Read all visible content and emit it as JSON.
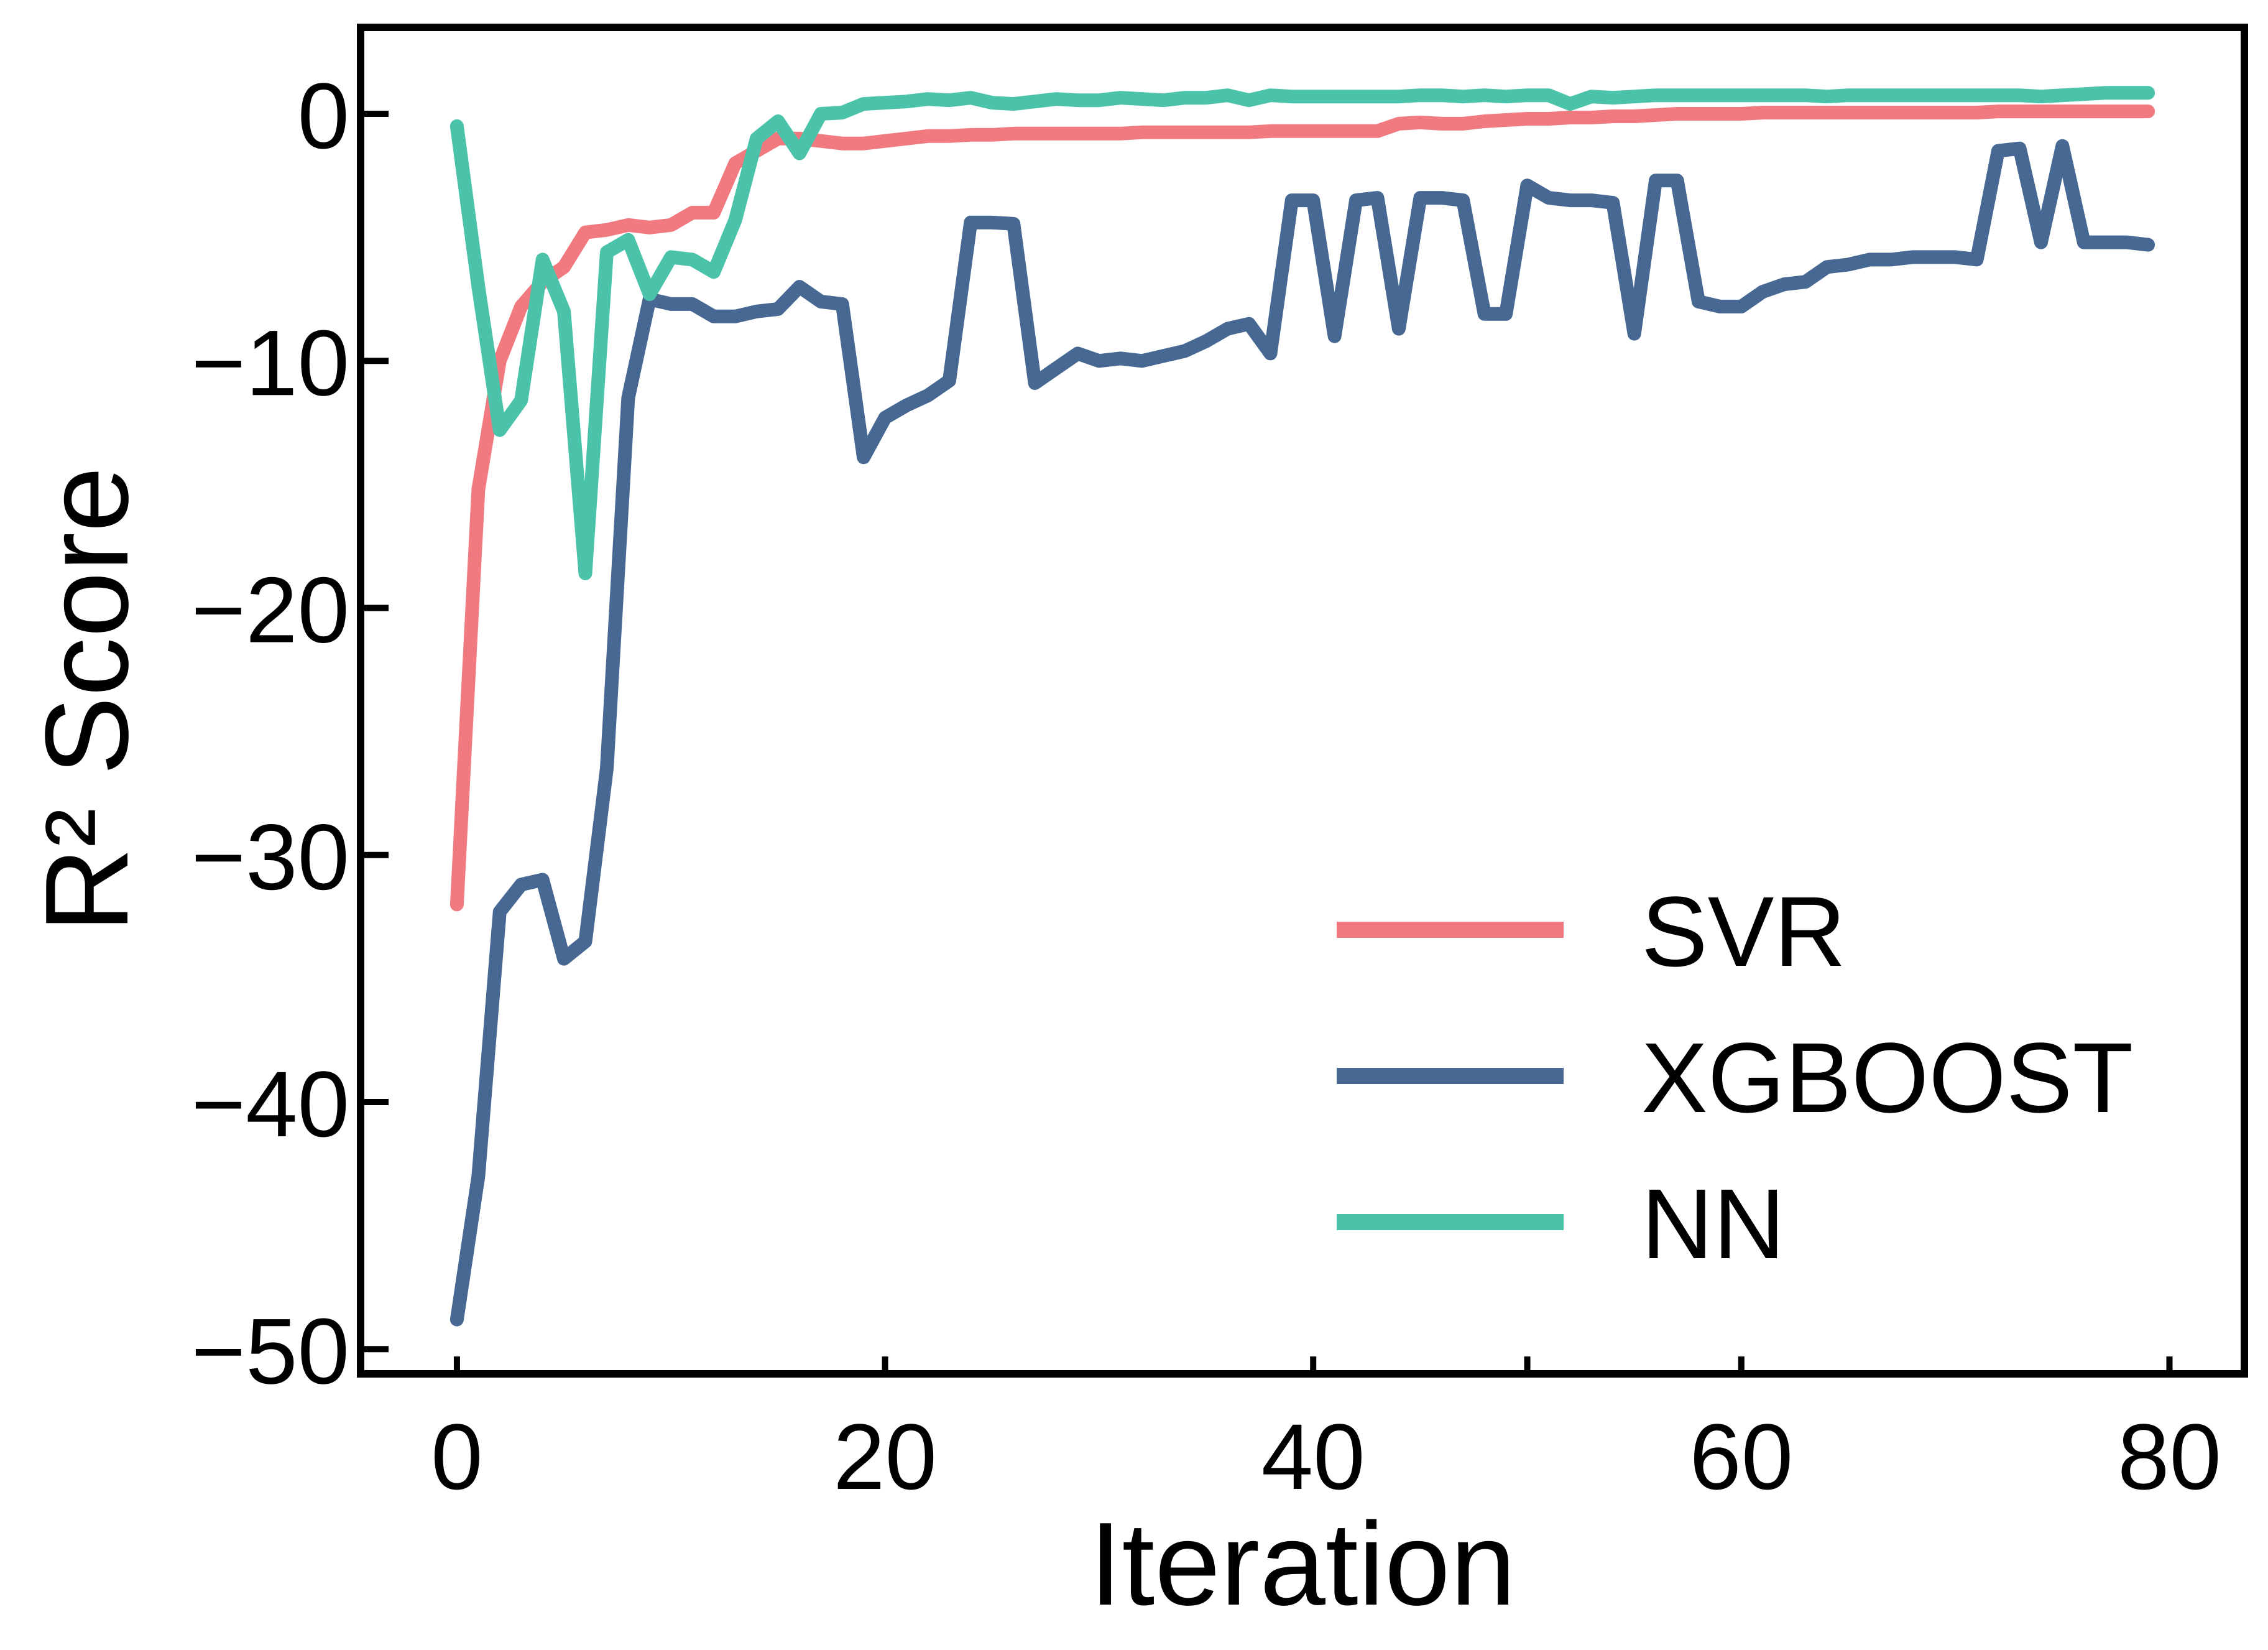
{
  "chart_data": {
    "type": "line",
    "xlabel": "Iteration",
    "ylabel": "R² Score",
    "xlim": [
      -4.5,
      83.5
    ],
    "ylim": [
      -51,
      3.5
    ],
    "x_ticks": [
      {
        "value": 0,
        "label": "0"
      },
      {
        "value": 20,
        "label": "20"
      },
      {
        "value": 40,
        "label": "40"
      },
      {
        "value": 60,
        "label": "60"
      },
      {
        "value": 80,
        "label": "80"
      }
    ],
    "x_minor_ticks": [
      50
    ],
    "y_ticks": [
      {
        "value": 0,
        "label": "0"
      },
      {
        "value": -10,
        "label": "−10"
      },
      {
        "value": -20,
        "label": "−20"
      },
      {
        "value": -30,
        "label": "−30"
      },
      {
        "value": -40,
        "label": "−40"
      },
      {
        "value": -50,
        "label": "−50"
      }
    ],
    "grid": false,
    "legend_position": "lower-right",
    "series": [
      {
        "name": "SVR",
        "color": "#F07A7F",
        "values": [
          -32.0,
          -15.2,
          -10.0,
          -7.8,
          -6.8,
          -6.2,
          -4.8,
          -4.7,
          -4.5,
          -4.6,
          -4.5,
          -4.0,
          -4.0,
          -2.0,
          -1.5,
          -1.0,
          -1.0,
          -1.1,
          -1.2,
          -1.2,
          -1.1,
          -1.0,
          -0.9,
          -0.9,
          -0.85,
          -0.85,
          -0.8,
          -0.8,
          -0.8,
          -0.8,
          -0.8,
          -0.8,
          -0.75,
          -0.75,
          -0.75,
          -0.75,
          -0.75,
          -0.75,
          -0.7,
          -0.7,
          -0.7,
          -0.7,
          -0.7,
          -0.7,
          -0.4,
          -0.35,
          -0.4,
          -0.4,
          -0.3,
          -0.25,
          -0.2,
          -0.2,
          -0.15,
          -0.15,
          -0.1,
          -0.1,
          -0.05,
          0.0,
          0.0,
          0.0,
          0.0,
          0.05,
          0.05,
          0.05,
          0.05,
          0.05,
          0.05,
          0.05,
          0.05,
          0.05,
          0.05,
          0.05,
          0.1,
          0.1,
          0.1,
          0.1,
          0.1,
          0.1,
          0.1,
          0.1
        ]
      },
      {
        "name": "XGBOOST",
        "color": "#466892",
        "values": [
          -48.8,
          -43.0,
          -32.3,
          -31.2,
          -31.0,
          -34.2,
          -33.5,
          -26.5,
          -11.5,
          -7.5,
          -7.7,
          -7.7,
          -8.2,
          -8.2,
          -8.0,
          -7.9,
          -7.0,
          -7.6,
          -7.7,
          -13.9,
          -12.3,
          -11.8,
          -11.4,
          -10.8,
          -4.4,
          -4.4,
          -4.45,
          -10.9,
          -10.3,
          -9.7,
          -10.0,
          -9.9,
          -10.0,
          -9.8,
          -9.6,
          -9.2,
          -8.7,
          -8.5,
          -9.7,
          -3.5,
          -3.5,
          -9.0,
          -3.5,
          -3.4,
          -8.7,
          -3.4,
          -3.4,
          -3.5,
          -8.1,
          -8.1,
          -2.9,
          -3.4,
          -3.5,
          -3.5,
          -3.6,
          -8.9,
          -2.7,
          -2.7,
          -7.6,
          -7.8,
          -7.8,
          -7.2,
          -6.9,
          -6.8,
          -6.2,
          -6.1,
          -5.9,
          -5.9,
          -5.8,
          -5.8,
          -5.8,
          -5.9,
          -1.5,
          -1.4,
          -5.2,
          -1.3,
          -5.2,
          -5.2,
          -5.2,
          -5.3
        ]
      },
      {
        "name": "NN",
        "color": "#4BC3AA",
        "values": [
          -0.5,
          -7.0,
          -12.8,
          -11.6,
          -5.9,
          -8.0,
          -18.6,
          -5.6,
          -5.1,
          -7.3,
          -5.8,
          -5.9,
          -6.4,
          -4.3,
          -1.0,
          -0.3,
          -1.6,
          0.0,
          0.05,
          0.4,
          0.45,
          0.5,
          0.6,
          0.55,
          0.65,
          0.45,
          0.4,
          0.5,
          0.6,
          0.55,
          0.55,
          0.65,
          0.6,
          0.55,
          0.65,
          0.65,
          0.75,
          0.55,
          0.75,
          0.7,
          0.7,
          0.7,
          0.7,
          0.7,
          0.7,
          0.75,
          0.75,
          0.7,
          0.75,
          0.7,
          0.75,
          0.75,
          0.4,
          0.7,
          0.65,
          0.7,
          0.75,
          0.75,
          0.75,
          0.75,
          0.75,
          0.75,
          0.75,
          0.75,
          0.7,
          0.75,
          0.75,
          0.75,
          0.75,
          0.75,
          0.75,
          0.75,
          0.75,
          0.75,
          0.7,
          0.75,
          0.8,
          0.85,
          0.85,
          0.85
        ]
      }
    ]
  }
}
